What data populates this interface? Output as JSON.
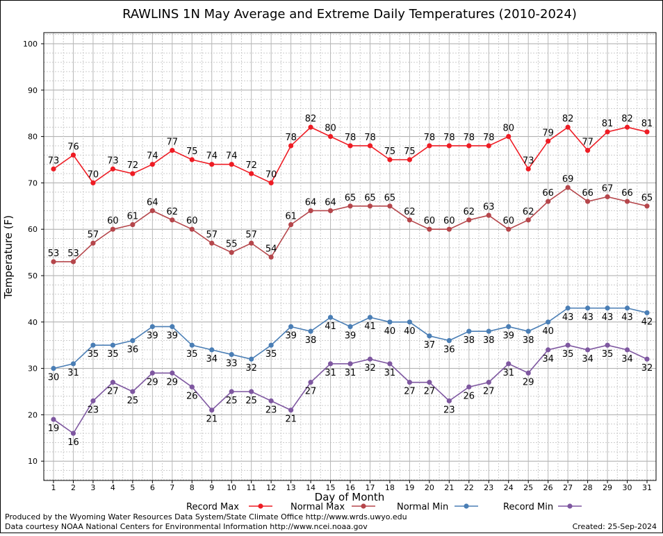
{
  "chart_data": {
    "type": "line",
    "title": "RAWLINS 1N May Average and Extreme Daily Temperatures (2010-2024)",
    "xlabel": "Day of Month",
    "ylabel": "Temperature (F)",
    "x": [
      1,
      2,
      3,
      4,
      5,
      6,
      7,
      8,
      9,
      10,
      11,
      12,
      13,
      14,
      15,
      16,
      17,
      18,
      19,
      20,
      21,
      22,
      23,
      24,
      25,
      26,
      27,
      28,
      29,
      30,
      31
    ],
    "xlim": [
      1,
      31
    ],
    "ylim": [
      0,
      100
    ],
    "yticks": [
      10,
      20,
      30,
      40,
      50,
      60,
      70,
      80,
      90,
      100
    ],
    "grid": true,
    "legend_position": "bottom",
    "series": [
      {
        "name": "Record Max",
        "color": "#ee1c24",
        "label_pos": "above",
        "values": [
          73,
          76,
          70,
          73,
          72,
          74,
          77,
          75,
          74,
          74,
          72,
          70,
          78,
          82,
          80,
          78,
          78,
          75,
          75,
          78,
          78,
          78,
          78,
          80,
          73,
          79,
          82,
          77,
          81,
          82,
          81
        ]
      },
      {
        "name": "Normal Max",
        "color": "#b5464b",
        "label_pos": "above",
        "values": [
          53,
          53,
          57,
          60,
          61,
          64,
          62,
          60,
          57,
          55,
          57,
          54,
          61,
          64,
          64,
          65,
          65,
          65,
          62,
          60,
          60,
          62,
          63,
          60,
          62,
          66,
          69,
          66,
          67,
          66,
          65
        ]
      },
      {
        "name": "Normal Min",
        "color": "#4a7eb5",
        "label_pos": "below",
        "values": [
          30,
          31,
          35,
          35,
          36,
          39,
          39,
          35,
          34,
          33,
          32,
          35,
          39,
          38,
          41,
          39,
          41,
          40,
          40,
          37,
          36,
          38,
          38,
          39,
          38,
          40,
          43,
          43,
          43,
          43,
          42
        ]
      },
      {
        "name": "Record Min",
        "color": "#7e57a0",
        "label_pos": "below",
        "values": [
          19,
          16,
          23,
          27,
          25,
          29,
          29,
          26,
          21,
          25,
          25,
          23,
          21,
          27,
          31,
          31,
          32,
          31,
          27,
          27,
          23,
          26,
          27,
          31,
          29,
          34,
          35,
          34,
          35,
          34,
          32
        ]
      }
    ]
  },
  "footer": {
    "credit_1": "Produced by the Wyoming Water Resources Data System/State Climate Office http://www.wrds.uwyo.edu",
    "credit_2": "Data courtesy NOAA National Centers for Environmental Information http://www.ncei.noaa.gov",
    "created": "Created:  25-Sep-2024"
  }
}
